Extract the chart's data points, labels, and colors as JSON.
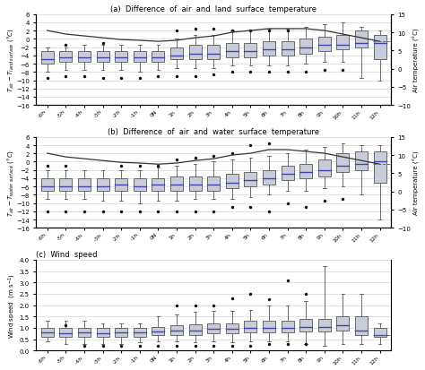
{
  "title_a": "(a)  Difference  of  air  and  land  surface  temperature",
  "title_b": "(b)  Difference  of  air  and  water  surface  temperature",
  "title_c": "(c)  Wind  speed",
  "ylabel2": "Air temperature (°C)",
  "xlabels": [
    "-6h",
    "-5h",
    "-4h",
    "-3h",
    "-2h",
    "-1h",
    "0N",
    "1h",
    "2h",
    "3h",
    "4h",
    "5h",
    "6h",
    "7h",
    "8h",
    "9h",
    "10h",
    "11h",
    "12h"
  ],
  "box_color": "#c8ccd8",
  "median_color": "#4444aa",
  "whisker_color": "#555555",
  "panel_a": {
    "boxes": [
      {
        "q1": -6,
        "median": -5,
        "q3": -3,
        "whislo": -8,
        "whishi": -2,
        "fliers_lo": [
          -9.5
        ],
        "fliers_hi": []
      },
      {
        "q1": -5.5,
        "median": -4.5,
        "q3": -3,
        "whislo": -7.5,
        "whishi": -2,
        "fliers_lo": [
          -9
        ],
        "fliers_hi": [
          -1.5
        ]
      },
      {
        "q1": -5.5,
        "median": -4.5,
        "q3": -3,
        "whislo": -7.5,
        "whishi": -1.5,
        "fliers_lo": [
          -9
        ],
        "fliers_hi": []
      },
      {
        "q1": -5.5,
        "median": -4.5,
        "q3": -3,
        "whislo": -7.5,
        "whishi": -1.5,
        "fliers_lo": [
          -9.5
        ],
        "fliers_hi": [
          -1
        ]
      },
      {
        "q1": -5.5,
        "median": -4.5,
        "q3": -3,
        "whislo": -7.5,
        "whishi": -1.5,
        "fliers_lo": [
          -9.5
        ],
        "fliers_hi": []
      },
      {
        "q1": -5.5,
        "median": -4.5,
        "q3": -3,
        "whislo": -8,
        "whishi": -1.5,
        "fliers_lo": [
          -9.5
        ],
        "fliers_hi": []
      },
      {
        "q1": -5.5,
        "median": -4.5,
        "q3": -3,
        "whislo": -7.5,
        "whishi": -1.5,
        "fliers_lo": [
          -9
        ],
        "fliers_hi": []
      },
      {
        "q1": -5,
        "median": -4,
        "q3": -2,
        "whislo": -7,
        "whishi": 0,
        "fliers_lo": [
          -9
        ],
        "fliers_hi": [
          2
        ]
      },
      {
        "q1": -5,
        "median": -3.5,
        "q3": -1.5,
        "whislo": -7,
        "whishi": 1,
        "fliers_lo": [
          -9
        ],
        "fliers_hi": [
          2.5
        ]
      },
      {
        "q1": -5,
        "median": -3.5,
        "q3": -1.5,
        "whislo": -7,
        "whishi": 1,
        "fliers_lo": [
          -8.5
        ],
        "fliers_hi": [
          2.5
        ]
      },
      {
        "q1": -4.5,
        "median": -3,
        "q3": -1,
        "whislo": -6.5,
        "whishi": 2,
        "fliers_lo": [
          -8
        ],
        "fliers_hi": [
          2
        ]
      },
      {
        "q1": -4.5,
        "median": -3,
        "q3": -1,
        "whislo": -6.5,
        "whishi": 2,
        "fliers_lo": [
          -8
        ],
        "fliers_hi": [
          2
        ]
      },
      {
        "q1": -4,
        "median": -2.5,
        "q3": -0.5,
        "whislo": -6.5,
        "whishi": 2.5,
        "fliers_lo": [
          -8
        ],
        "fliers_hi": [
          2
        ]
      },
      {
        "q1": -4,
        "median": -2.5,
        "q3": -0.5,
        "whislo": -6.5,
        "whishi": 2.5,
        "fliers_lo": [
          -8
        ],
        "fliers_hi": [
          2
        ]
      },
      {
        "q1": -3.5,
        "median": -2,
        "q3": 0,
        "whislo": -6,
        "whishi": 3,
        "fliers_lo": [
          -8
        ],
        "fliers_hi": []
      },
      {
        "q1": -3,
        "median": -1.5,
        "q3": 0.5,
        "whislo": -5.5,
        "whishi": 3.5,
        "fliers_lo": [
          -7.5
        ],
        "fliers_hi": []
      },
      {
        "q1": -2.5,
        "median": -1.5,
        "q3": 1,
        "whislo": -5.5,
        "whishi": 4,
        "fliers_lo": [
          -7.5
        ],
        "fliers_hi": []
      },
      {
        "q1": -2,
        "median": -1,
        "q3": 2,
        "whislo": -9.5,
        "whishi": 3,
        "fliers_lo": [],
        "fliers_hi": []
      },
      {
        "q1": -5,
        "median": -1,
        "q3": 1,
        "whislo": -10,
        "whishi": 2,
        "fliers_lo": [],
        "fliers_hi": []
      }
    ],
    "air_temp": [
      10.5,
      9.5,
      9.0,
      8.5,
      8.0,
      7.8,
      7.5,
      7.8,
      8.5,
      9.0,
      10.0,
      10.5,
      11.0,
      11.0,
      11.0,
      10.5,
      9.5,
      8.5,
      7.5
    ],
    "ylim": [
      -16,
      6
    ],
    "ylim2": [
      -10,
      15
    ],
    "yticks": [
      -16,
      -14,
      -12,
      -10,
      -8,
      -6,
      -4,
      -2,
      0,
      2,
      4,
      6
    ],
    "yticks2": [
      -10,
      -5,
      0,
      5,
      10,
      15
    ]
  },
  "panel_b": {
    "boxes": [
      {
        "q1": -7,
        "median": -6,
        "q3": -4,
        "whislo": -9,
        "whishi": -2,
        "fliers_lo": [
          -12
        ],
        "fliers_hi": [
          -1
        ]
      },
      {
        "q1": -7,
        "median": -6,
        "q3": -4,
        "whislo": -9,
        "whishi": -2,
        "fliers_lo": [
          -12
        ],
        "fliers_hi": [
          -1
        ]
      },
      {
        "q1": -7,
        "median": -6,
        "q3": -4,
        "whislo": -9,
        "whishi": -2,
        "fliers_lo": [
          -12
        ],
        "fliers_hi": []
      },
      {
        "q1": -7,
        "median": -6,
        "q3": -4,
        "whislo": -9.5,
        "whishi": -2,
        "fliers_lo": [
          -12
        ],
        "fliers_hi": []
      },
      {
        "q1": -7,
        "median": -5.5,
        "q3": -4,
        "whislo": -9.5,
        "whishi": -2,
        "fliers_lo": [
          -12
        ],
        "fliers_hi": [
          -1
        ]
      },
      {
        "q1": -7,
        "median": -6,
        "q3": -4,
        "whislo": -10,
        "whishi": -2,
        "fliers_lo": [
          -12
        ],
        "fliers_hi": [
          -1
        ]
      },
      {
        "q1": -7,
        "median": -5.5,
        "q3": -4,
        "whislo": -9.5,
        "whishi": -1.5,
        "fliers_lo": [
          -12
        ],
        "fliers_hi": [
          -1
        ]
      },
      {
        "q1": -7,
        "median": -5.5,
        "q3": -3.5,
        "whislo": -9.5,
        "whishi": -1,
        "fliers_lo": [
          -12
        ],
        "fliers_hi": [
          0.5
        ]
      },
      {
        "q1": -7,
        "median": -5.5,
        "q3": -3.5,
        "whislo": -9,
        "whishi": -0.5,
        "fliers_lo": [
          -12
        ],
        "fliers_hi": [
          1
        ]
      },
      {
        "q1": -7,
        "median": -5.5,
        "q3": -3.5,
        "whislo": -9,
        "whishi": 0,
        "fliers_lo": [
          -12
        ],
        "fliers_hi": [
          1.5
        ]
      },
      {
        "q1": -6.5,
        "median": -5,
        "q3": -3,
        "whislo": -9,
        "whishi": 0.5,
        "fliers_lo": [
          -11
        ],
        "fliers_hi": [
          2
        ]
      },
      {
        "q1": -6,
        "median": -4.5,
        "q3": -2.5,
        "whislo": -8.5,
        "whishi": 1,
        "fliers_lo": [
          -11
        ],
        "fliers_hi": [
          4
        ]
      },
      {
        "q1": -5.5,
        "median": -4,
        "q3": -2,
        "whislo": -8,
        "whishi": 1.5,
        "fliers_lo": [
          -12
        ],
        "fliers_hi": [
          4.5
        ]
      },
      {
        "q1": -4.5,
        "median": -3,
        "q3": -1,
        "whislo": -7,
        "whishi": 2,
        "fliers_lo": [
          -10
        ],
        "fliers_hi": []
      },
      {
        "q1": -4,
        "median": -2.5,
        "q3": -0.5,
        "whislo": -7,
        "whishi": 3,
        "fliers_lo": [
          -11
        ],
        "fliers_hi": []
      },
      {
        "q1": -3.5,
        "median": -2,
        "q3": 0.5,
        "whislo": -6.5,
        "whishi": 3.5,
        "fliers_lo": [
          -9.5
        ],
        "fliers_hi": []
      },
      {
        "q1": -2.5,
        "median": -1,
        "q3": 2,
        "whislo": -6,
        "whishi": 4.5,
        "fliers_lo": [
          -9
        ],
        "fliers_hi": []
      },
      {
        "q1": -2,
        "median": -0.5,
        "q3": 2.5,
        "whislo": -8,
        "whishi": 4,
        "fliers_lo": [],
        "fliers_hi": []
      },
      {
        "q1": -5,
        "median": 0,
        "q3": 2.5,
        "whislo": -14,
        "whishi": 4,
        "fliers_lo": [],
        "fliers_hi": []
      }
    ],
    "air_temp": [
      10.5,
      9.5,
      9.0,
      8.5,
      8.0,
      7.8,
      7.5,
      7.8,
      8.5,
      9.0,
      10.0,
      10.5,
      11.5,
      11.5,
      11.0,
      10.5,
      9.5,
      8.5,
      7.5
    ],
    "ylim": [
      -16,
      6
    ],
    "ylim2": [
      -10,
      15
    ],
    "yticks": [
      -16,
      -14,
      -12,
      -10,
      -8,
      -6,
      -4,
      -2,
      0,
      2,
      4,
      6
    ],
    "yticks2": [
      -10,
      -5,
      0,
      5,
      10,
      15
    ]
  },
  "panel_c": {
    "boxes": [
      {
        "q1": 0.6,
        "median": 0.8,
        "q3": 1.0,
        "whislo": 0.4,
        "whishi": 1.3,
        "fliers_lo": [],
        "fliers_hi": []
      },
      {
        "q1": 0.6,
        "median": 0.75,
        "q3": 1.0,
        "whislo": 0.3,
        "whishi": 1.3,
        "fliers_lo": [],
        "fliers_hi": [
          1.1
        ]
      },
      {
        "q1": 0.6,
        "median": 0.8,
        "q3": 1.0,
        "whislo": 0.3,
        "whishi": 1.3,
        "fliers_lo": [
          0.2
        ],
        "fliers_hi": []
      },
      {
        "q1": 0.6,
        "median": 0.75,
        "q3": 1.0,
        "whislo": 0.3,
        "whishi": 1.2,
        "fliers_lo": [
          0.2
        ],
        "fliers_hi": []
      },
      {
        "q1": 0.6,
        "median": 0.8,
        "q3": 1.0,
        "whislo": 0.3,
        "whishi": 1.2,
        "fliers_lo": [
          0.2
        ],
        "fliers_hi": []
      },
      {
        "q1": 0.6,
        "median": 0.8,
        "q3": 1.0,
        "whislo": 0.35,
        "whishi": 1.2,
        "fliers_lo": [
          0.2
        ],
        "fliers_hi": []
      },
      {
        "q1": 0.7,
        "median": 0.85,
        "q3": 1.05,
        "whislo": 0.4,
        "whishi": 1.5,
        "fliers_lo": [
          0.2
        ],
        "fliers_hi": []
      },
      {
        "q1": 0.7,
        "median": 0.9,
        "q3": 1.1,
        "whislo": 0.4,
        "whishi": 1.6,
        "fliers_lo": [
          0.2
        ],
        "fliers_hi": [
          2.0
        ]
      },
      {
        "q1": 0.7,
        "median": 0.9,
        "q3": 1.15,
        "whislo": 0.35,
        "whishi": 1.7,
        "fliers_lo": [
          0.2
        ],
        "fliers_hi": [
          2.0
        ]
      },
      {
        "q1": 0.75,
        "median": 0.95,
        "q3": 1.2,
        "whislo": 0.4,
        "whishi": 1.75,
        "fliers_lo": [
          0.2
        ],
        "fliers_hi": [
          2.0
        ]
      },
      {
        "q1": 0.75,
        "median": 0.95,
        "q3": 1.2,
        "whislo": 0.35,
        "whishi": 1.75,
        "fliers_lo": [
          0.2
        ],
        "fliers_hi": [
          2.3
        ]
      },
      {
        "q1": 0.8,
        "median": 1.0,
        "q3": 1.3,
        "whislo": 0.4,
        "whishi": 1.8,
        "fliers_lo": [
          0.2
        ],
        "fliers_hi": [
          2.5
        ]
      },
      {
        "q1": 0.8,
        "median": 1.0,
        "q3": 1.3,
        "whislo": 0.4,
        "whishi": 2.0,
        "fliers_lo": [
          0.3
        ],
        "fliers_hi": [
          2.25
        ]
      },
      {
        "q1": 0.8,
        "median": 1.0,
        "q3": 1.3,
        "whislo": 0.4,
        "whishi": 2.0,
        "fliers_lo": [
          0.3
        ],
        "fliers_hi": [
          3.1
        ]
      },
      {
        "q1": 0.85,
        "median": 1.05,
        "q3": 1.4,
        "whislo": 0.3,
        "whishi": 2.2,
        "fliers_lo": [
          0.3
        ],
        "fliers_hi": [
          2.5
        ]
      },
      {
        "q1": 0.85,
        "median": 1.05,
        "q3": 1.4,
        "whislo": 0.2,
        "whishi": 3.7,
        "fliers_lo": [],
        "fliers_hi": []
      },
      {
        "q1": 0.9,
        "median": 1.1,
        "q3": 1.5,
        "whislo": 0.3,
        "whishi": 2.5,
        "fliers_lo": [],
        "fliers_hi": []
      },
      {
        "q1": 0.7,
        "median": 0.9,
        "q3": 1.5,
        "whislo": 0.3,
        "whishi": 2.5,
        "fliers_lo": [],
        "fliers_hi": []
      },
      {
        "q1": 0.6,
        "median": 0.7,
        "q3": 1.0,
        "whislo": 0.3,
        "whishi": 1.2,
        "fliers_lo": [],
        "fliers_hi": []
      }
    ],
    "ylim": [
      0.0,
      4.0
    ],
    "yticks": [
      0.0,
      0.5,
      1.0,
      1.5,
      2.0,
      2.5,
      3.0,
      3.5,
      4.0
    ]
  },
  "figsize": [
    4.74,
    4.14
  ],
  "dpi": 100
}
